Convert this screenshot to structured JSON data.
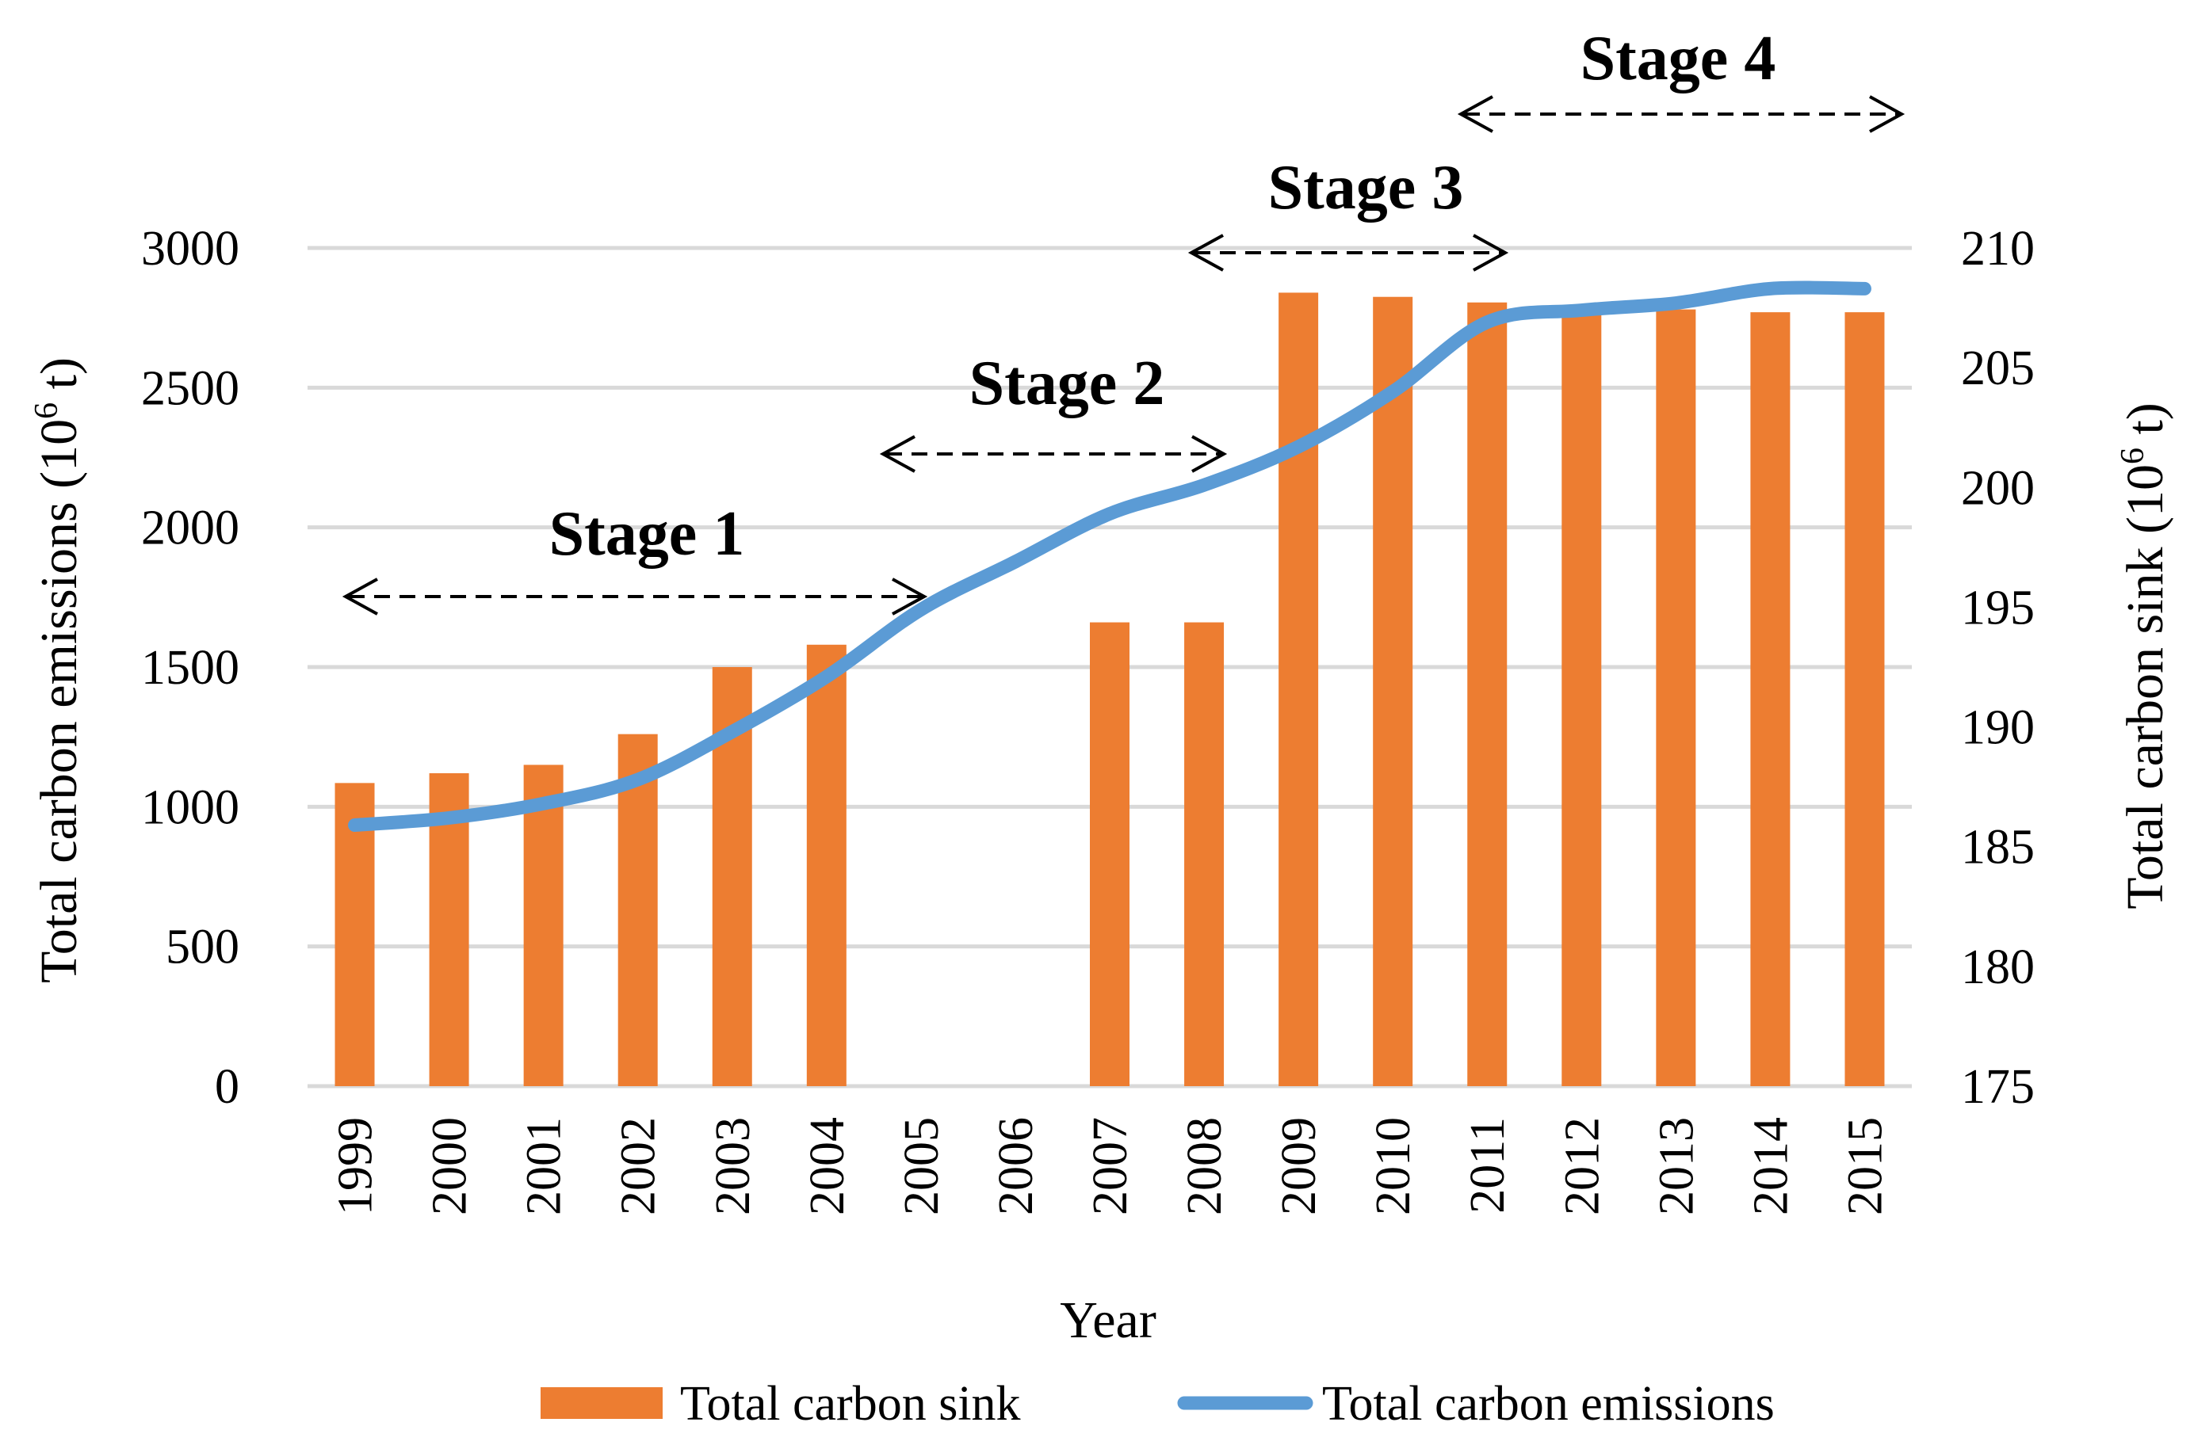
{
  "chart_data": {
    "type": "bar+line",
    "categories": [
      "1999",
      "2000",
      "2001",
      "2002",
      "2003",
      "2004",
      "2005",
      "2006",
      "2007",
      "2008",
      "2009",
      "2010",
      "2011",
      "2012",
      "2013",
      "2014",
      "2015"
    ],
    "xlabel": "Year",
    "ylabel_left_main": "Total carbon emissions (10",
    "ylabel_left_sup": "6",
    "ylabel_left_end": " t)",
    "ylabel_right_main": "Total carbon sink (10",
    "ylabel_right_sup": "6",
    "ylabel_right_end": " t)",
    "ylim_left": [
      0,
      3000
    ],
    "yticks_left": [
      "0",
      "500",
      "1000",
      "1500",
      "2000",
      "2500",
      "3000"
    ],
    "ylim_right": [
      175,
      210
    ],
    "yticks_right": [
      "175",
      "180",
      "185",
      "190",
      "195",
      "200",
      "205",
      "210"
    ],
    "grid": true,
    "legend_position": "bottom",
    "series": [
      {
        "name": "Total carbon sink",
        "kind": "bar",
        "axis": "left",
        "color": "#ed7d31",
        "values": [
          1085,
          1120,
          1150,
          1260,
          1500,
          1580,
          null,
          null,
          1660,
          1660,
          2840,
          2825,
          2805,
          2780,
          2780,
          2770,
          2770
        ]
      },
      {
        "name": "Total carbon emissions",
        "kind": "line",
        "axis": "right",
        "color": "#5b9bd5",
        "values": [
          185.9,
          186.2,
          186.8,
          187.8,
          189.8,
          192.1,
          194.9,
          196.9,
          198.9,
          200.1,
          201.7,
          204.0,
          206.9,
          207.4,
          207.7,
          208.3,
          208.3
        ]
      }
    ],
    "stages": [
      {
        "label": "Stage 1",
        "from": "1999",
        "to": "2005"
      },
      {
        "label": "Stage 2",
        "from": "2005",
        "to": "2008"
      },
      {
        "label": "Stage 3",
        "from": "2008",
        "to": "2011"
      },
      {
        "label": "Stage 4",
        "from": "2011",
        "to": "2015"
      }
    ]
  }
}
